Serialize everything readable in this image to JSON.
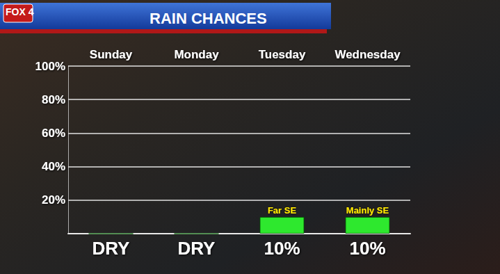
{
  "chart_data": {
    "type": "bar",
    "title": "RAIN CHANCES",
    "logo": "FOX 4",
    "categories": [
      "Sunday",
      "Monday",
      "Tuesday",
      "Wednesday"
    ],
    "values": [
      0,
      0,
      10,
      10
    ],
    "value_labels": [
      "DRY",
      "DRY",
      "10%",
      "10%"
    ],
    "annotations": [
      {
        "category": "Tuesday",
        "text": "Far SE"
      },
      {
        "category": "Wednesday",
        "text": "Mainly SE"
      }
    ],
    "color": "#2ee82e",
    "ylim": [
      0,
      100
    ],
    "yticks": [
      {
        "value": 20,
        "label": "20%"
      },
      {
        "value": 40,
        "label": "40%"
      },
      {
        "value": 60,
        "label": "60%"
      },
      {
        "value": 80,
        "label": "80%"
      },
      {
        "value": 100,
        "label": "100%"
      }
    ],
    "grid": true,
    "data_labels": true
  }
}
